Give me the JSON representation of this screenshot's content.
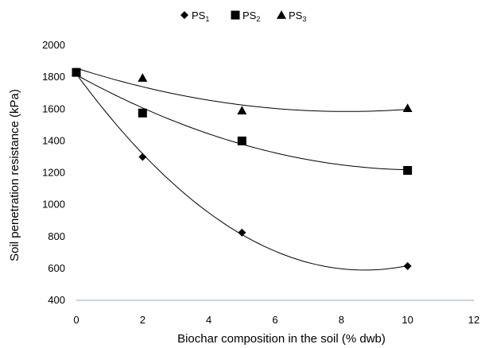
{
  "chart_data": {
    "type": "scatter",
    "title": "",
    "xlabel": "Biochar composition in the soil (% dwb)",
    "ylabel": "Soil penetration resistance (kPa)",
    "xlim": [
      0,
      12
    ],
    "ylim": [
      400,
      2000
    ],
    "xticks": [
      0,
      2,
      4,
      6,
      8,
      10,
      12
    ],
    "yticks": [
      400,
      600,
      800,
      1000,
      1200,
      1400,
      1600,
      1800,
      2000
    ],
    "grid": false,
    "legend_position": "top-center",
    "trendlines": "polynomial",
    "axis_color": "#8fa9c9",
    "series": [
      {
        "name": "PS",
        "name_sub": "1",
        "marker": "diamond",
        "color": "#000000",
        "x": [
          0,
          2,
          5,
          10
        ],
        "y": [
          1830,
          1300,
          825,
          615
        ]
      },
      {
        "name": "PS",
        "name_sub": "2",
        "marker": "square",
        "color": "#000000",
        "x": [
          0,
          2,
          5,
          10
        ],
        "y": [
          1830,
          1575,
          1400,
          1215
        ]
      },
      {
        "name": "PS",
        "name_sub": "3",
        "marker": "triangle",
        "color": "#000000",
        "x": [
          0,
          2,
          5,
          10
        ],
        "y": [
          1830,
          1795,
          1590,
          1605
        ]
      }
    ]
  }
}
